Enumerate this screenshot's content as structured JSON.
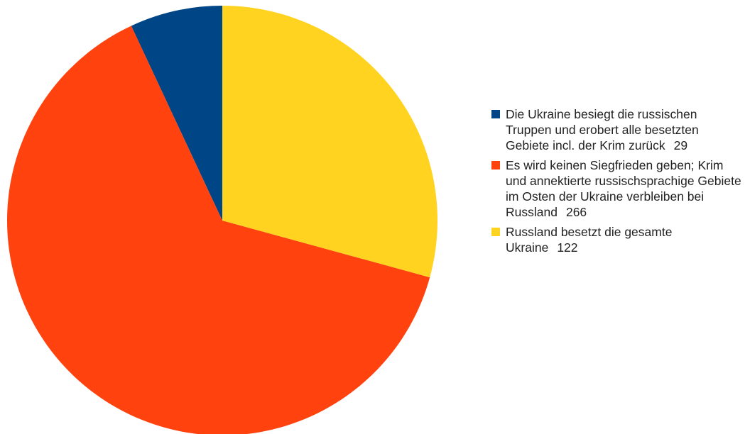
{
  "chart_data": {
    "type": "pie",
    "categories": [
      "Die Ukraine besiegt die russischen Truppen und erobert alle besetzten Gebiete incl. der Krim zurück",
      "Es wird keinen Siegfrieden geben; Krim und annektierte russischsprachige Gebiete im Osten der Ukraine verbleiben bei Russland",
      "Russland besetzt die gesamte Ukraine"
    ],
    "values": [
      29,
      266,
      122
    ],
    "colors": [
      "#004586",
      "#ff420e",
      "#ffd320"
    ]
  }
}
